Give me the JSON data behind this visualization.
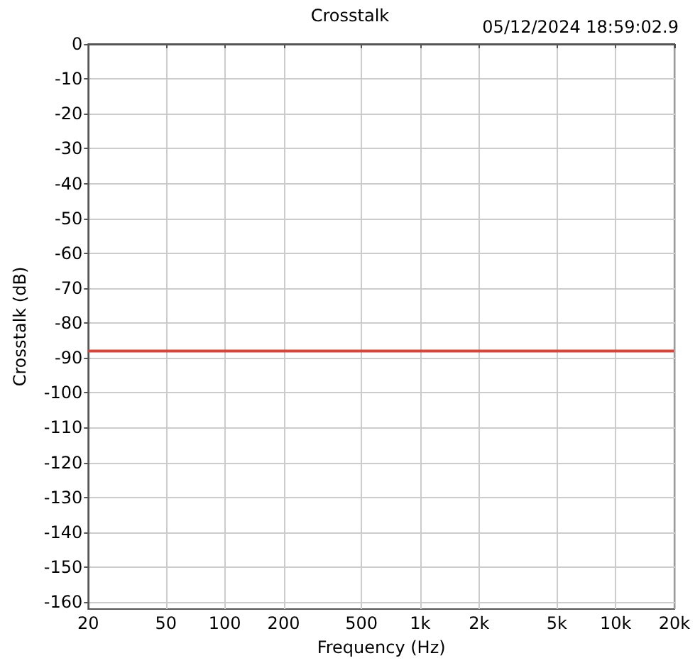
{
  "chart_data": {
    "type": "line",
    "title": "Crosstalk",
    "xlabel": "Frequency (Hz)",
    "ylabel": "Crosstalk (dB)",
    "annotations": [
      "05/12/2024 18:59:02.9"
    ],
    "log": "x",
    "grid": true,
    "marker": "none",
    "line_style": "solid",
    "xlim": [
      20,
      20000
    ],
    "xticks": [
      20,
      50,
      100,
      200,
      500,
      {
        "value": 1000,
        "label": "1k"
      },
      {
        "value": 2000,
        "label": "2k"
      },
      {
        "value": 5000,
        "label": "5k"
      },
      {
        "value": 10000,
        "label": "10k"
      },
      {
        "value": 20000,
        "label": "20k"
      }
    ],
    "ylim": [
      -162,
      0
    ],
    "yticks": [
      0,
      -10,
      -20,
      -30,
      -40,
      -50,
      -60,
      -70,
      -80,
      -90,
      -100,
      -110,
      -120,
      -130,
      -140,
      -150,
      -160
    ],
    "series": [
      {
        "color": "#d0483c",
        "x": [
          20,
          20000
        ],
        "values": [
          -88,
          -88
        ]
      }
    ]
  }
}
